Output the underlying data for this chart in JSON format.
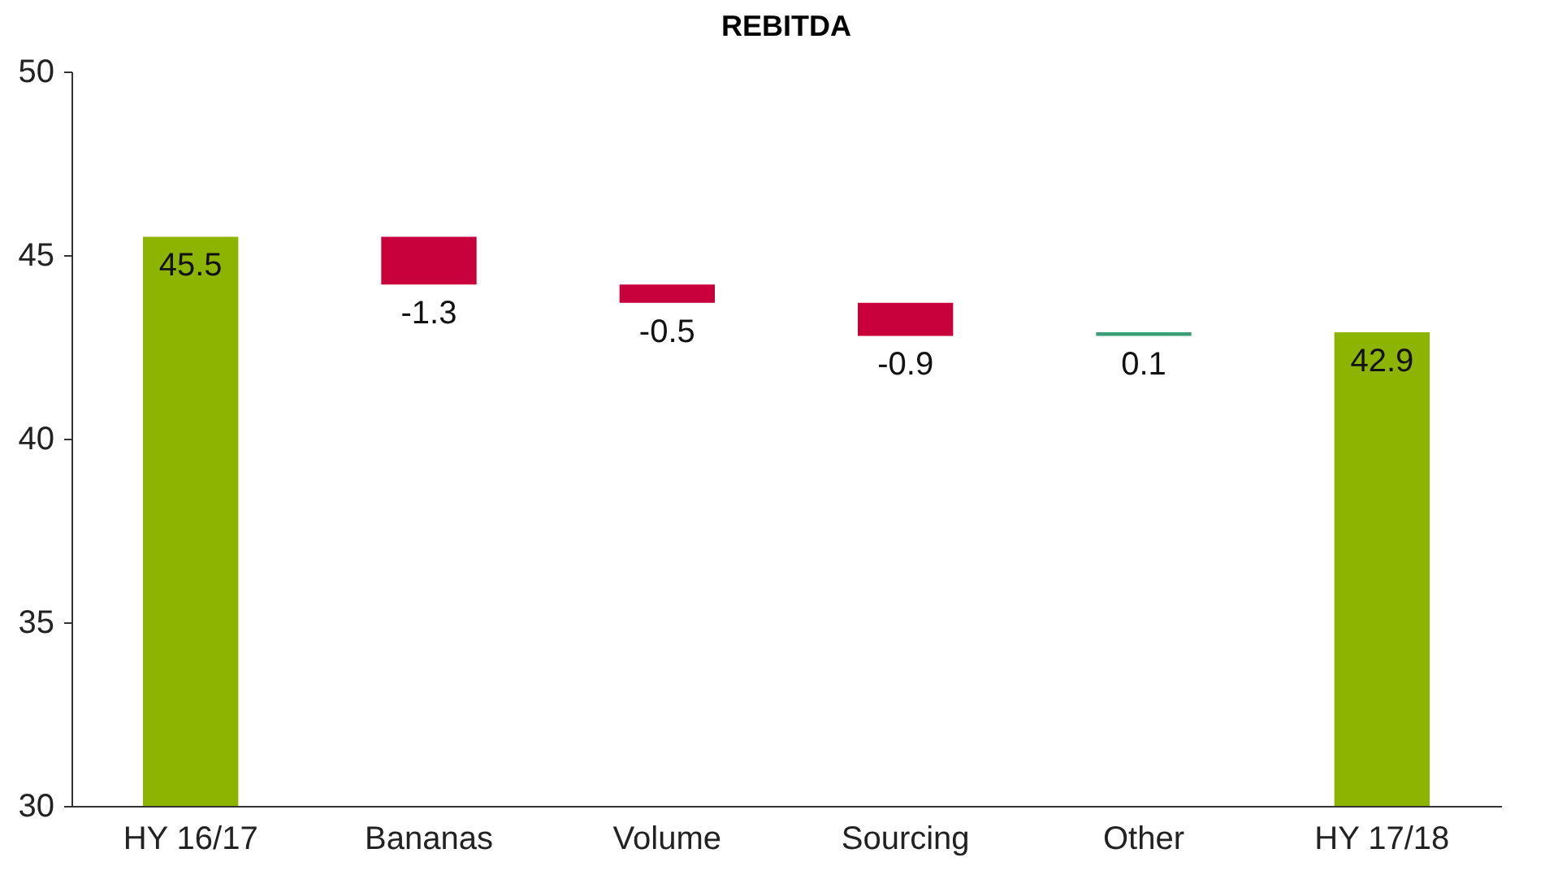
{
  "chart_data": {
    "type": "bar",
    "title": "REBITDA",
    "categories": [
      "HY 16/17",
      "Bananas",
      "Volume",
      "Sourcing",
      "Other",
      "HY 17/18"
    ],
    "values": [
      45.5,
      -1.3,
      -0.5,
      -0.9,
      0.1,
      42.9
    ],
    "base": [
      null,
      45.5,
      44.2,
      43.7,
      42.8,
      null
    ],
    "colors": [
      "#8cb400",
      "#c8003c",
      "#c8003c",
      "#c8003c",
      "#3a9e78",
      "#8cb400"
    ],
    "ylim": [
      30,
      50
    ],
    "yticks": [
      30,
      35,
      40,
      45,
      50
    ],
    "grid": false,
    "data_labels": true
  }
}
